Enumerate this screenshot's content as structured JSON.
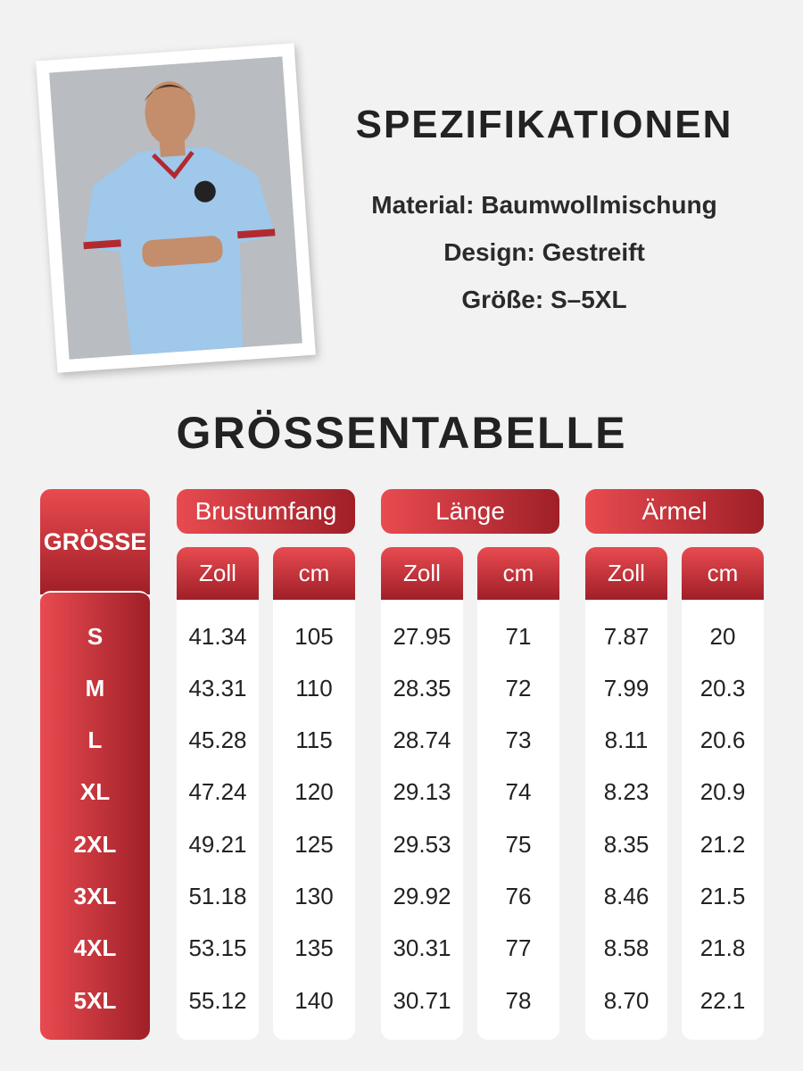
{
  "specs": {
    "title": "SPEZIFIKATIONEN",
    "lines": [
      "Material: Baumwollmischung",
      "Design: Gestreift",
      "Größe: S–5XL"
    ]
  },
  "table": {
    "title": "GRÖSSENTABELLE",
    "size_header": "GRÖSSE",
    "groups": [
      {
        "name": "Brustumfang",
        "units": [
          "Zoll",
          "cm"
        ]
      },
      {
        "name": "Länge",
        "units": [
          "Zoll",
          "cm"
        ]
      },
      {
        "name": "Ärmel",
        "units": [
          "Zoll",
          "cm"
        ]
      }
    ],
    "sizes": [
      "S",
      "M",
      "L",
      "XL",
      "2XL",
      "3XL",
      "4XL",
      "5XL"
    ],
    "rows": [
      [
        "41.34",
        "105",
        "27.95",
        "71",
        "7.87",
        "20"
      ],
      [
        "43.31",
        "110",
        "28.35",
        "72",
        "7.99",
        "20.3"
      ],
      [
        "45.28",
        "115",
        "28.74",
        "73",
        "8.11",
        "20.6"
      ],
      [
        "47.24",
        "120",
        "29.13",
        "74",
        "8.23",
        "20.9"
      ],
      [
        "49.21",
        "125",
        "29.53",
        "75",
        "8.35",
        "21.2"
      ],
      [
        "51.18",
        "130",
        "29.92",
        "76",
        "8.46",
        "21.5"
      ],
      [
        "53.15",
        "135",
        "30.31",
        "77",
        "8.58",
        "21.8"
      ],
      [
        "55.12",
        "140",
        "30.71",
        "78",
        "8.70",
        "22.1"
      ]
    ]
  }
}
